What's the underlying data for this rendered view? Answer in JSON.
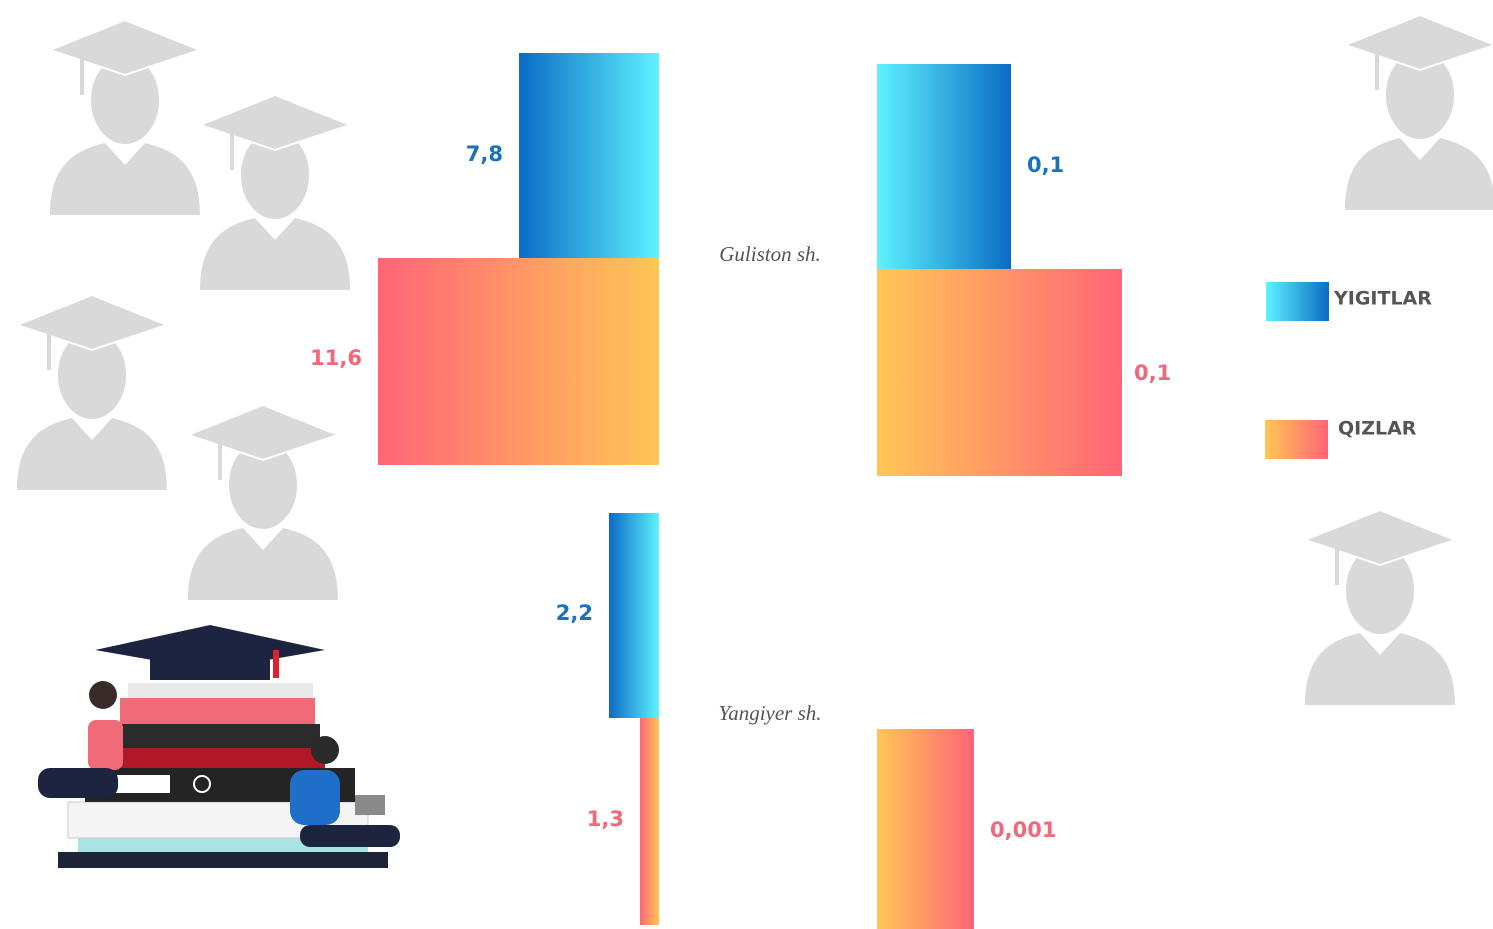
{
  "legend": [
    "YIGITLAR",
    "QIZLAR"
  ],
  "groups": [
    {
      "label": "Guliston sh.",
      "values": [
        "7,8",
        "11,6",
        "0,1",
        "0,1"
      ]
    },
    {
      "label": "Yangiyer sh.",
      "values": [
        "2,2",
        "1,3",
        "0,001"
      ]
    }
  ]
}
